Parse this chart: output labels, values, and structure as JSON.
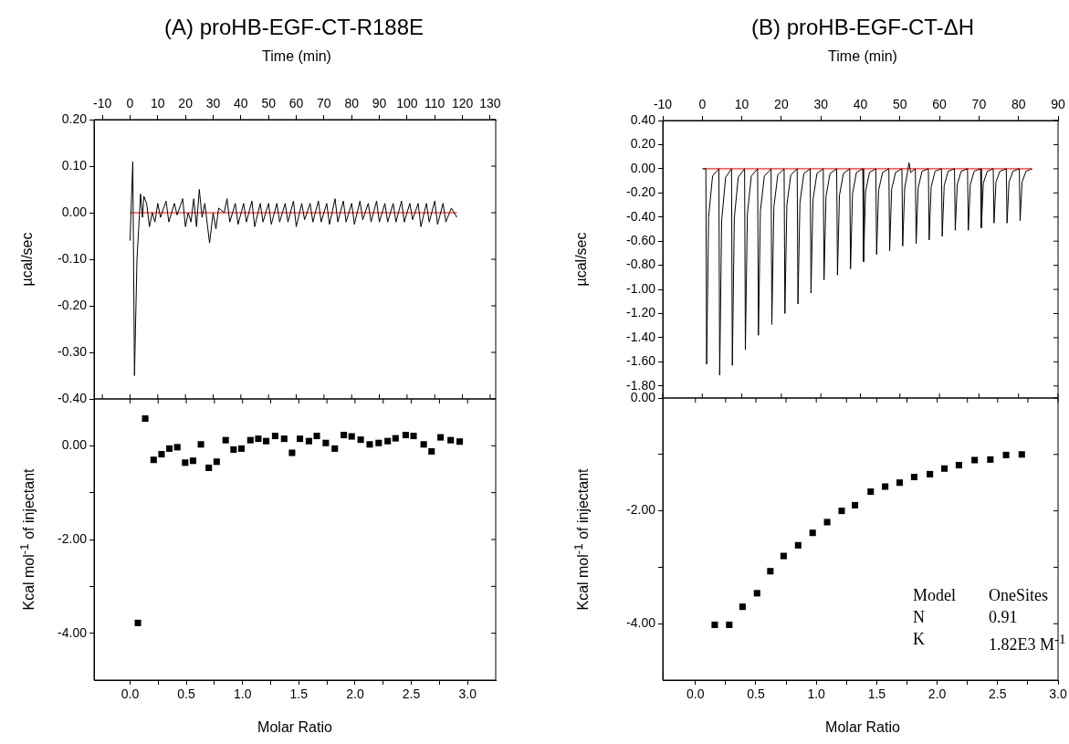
{
  "chart_data": [
    {
      "type": "line",
      "title": "(A) proHB-EGF-CT-R188E",
      "xlabel": "Time (min)",
      "ylabel": "µcal/sec",
      "xlim": [
        -13,
        132
      ],
      "xticks": [
        -10,
        0,
        10,
        20,
        30,
        40,
        50,
        60,
        70,
        80,
        90,
        100,
        110,
        120,
        130
      ],
      "ylim": [
        -0.4,
        0.2
      ],
      "yticks": [
        {
          "value": 0.2,
          "label": "0.20"
        },
        {
          "value": 0.1,
          "label": "0.10"
        },
        {
          "value": 0,
          "label": "0.00"
        },
        {
          "value": -0.1,
          "label": "-0.10"
        },
        {
          "value": -0.2,
          "label": "-0.20"
        },
        {
          "value": -0.3,
          "label": "-0.30"
        },
        {
          "value": -0.4,
          "label": "-0.40"
        }
      ],
      "marker": "none",
      "series": [
        {
          "color": "#000000",
          "x": [
            0,
            1,
            1.6,
            2.5,
            3.8,
            4.5,
            5,
            6,
            7,
            8,
            9,
            10,
            11,
            13,
            14,
            16,
            17,
            19,
            20,
            21,
            22,
            23,
            24,
            25,
            26,
            27,
            28.7,
            30,
            31,
            32,
            34,
            35,
            36,
            38,
            39,
            41,
            42,
            44,
            45,
            47,
            48,
            50,
            51,
            53,
            54,
            56,
            57,
            59,
            60,
            62,
            63,
            65,
            66,
            68,
            69,
            71,
            72,
            74,
            75,
            77,
            78,
            80,
            81,
            83,
            84,
            86,
            87,
            89,
            90,
            92,
            93,
            95,
            96,
            98,
            99,
            101,
            102,
            104,
            105,
            107,
            108,
            110,
            111,
            113,
            114,
            116,
            118
          ],
          "values": [
            -0.06,
            0.11,
            -0.35,
            -0.1,
            0.04,
            -0.01,
            0.035,
            0.02,
            -0.03,
            0,
            -0.02,
            0.02,
            -0.01,
            0.025,
            -0.02,
            0.02,
            -0.005,
            0.03,
            -0.03,
            0,
            -0.02,
            0.03,
            -0.03,
            0.05,
            -0.01,
            0.02,
            -0.065,
            0,
            -0.035,
            0.01,
            0,
            0.03,
            -0.02,
            0.02,
            -0.025,
            0.02,
            -0.02,
            0.025,
            -0.03,
            0.02,
            -0.02,
            0.02,
            -0.025,
            0.02,
            -0.02,
            0.02,
            -0.02,
            0.025,
            -0.03,
            0.02,
            -0.015,
            0.02,
            -0.02,
            0.025,
            -0.02,
            0.02,
            -0.025,
            0.03,
            -0.02,
            0.025,
            -0.02,
            0.02,
            -0.025,
            0.025,
            -0.015,
            0.02,
            -0.02,
            0.025,
            -0.02,
            0.02,
            -0.02,
            0.02,
            -0.02,
            0.025,
            -0.02,
            0.02,
            -0.015,
            0.02,
            -0.03,
            0.02,
            -0.02,
            0.025,
            -0.025,
            0.02,
            -0.02,
            0.01,
            -0.01
          ]
        },
        {
          "color": "#ff0000",
          "x": [
            0,
            118
          ],
          "values": [
            0,
            0
          ]
        }
      ]
    },
    {
      "type": "scatter",
      "xlabel": "Molar Ratio",
      "ylabel": "Kcal mol$^{-1}$ of injectant",
      "marker": "square",
      "color": "#000000",
      "xlim": [
        -0.32,
        3.25
      ],
      "xticks": [
        {
          "value": 0,
          "label": "0.0"
        },
        {
          "value": 0.25,
          "label": null
        },
        {
          "value": 0.5,
          "label": "0.5"
        },
        {
          "value": 0.75,
          "label": null
        },
        {
          "value": 1,
          "label": "1.0"
        },
        {
          "value": 1.25,
          "label": null
        },
        {
          "value": 1.5,
          "label": "1.5"
        },
        {
          "value": 1.75,
          "label": null
        },
        {
          "value": 2,
          "label": "2.0"
        },
        {
          "value": 2.25,
          "label": null
        },
        {
          "value": 2.5,
          "label": "2.5"
        },
        {
          "value": 2.75,
          "label": null
        },
        {
          "value": 3,
          "label": "3.0"
        }
      ],
      "ylim": [
        -5,
        1
      ],
      "yticks": [
        {
          "value": 0,
          "label": "0.00"
        },
        {
          "value": -1,
          "label": null
        },
        {
          "value": -2,
          "label": "-2.00"
        },
        {
          "value": -3,
          "label": null
        },
        {
          "value": -4,
          "label": "-4.00"
        }
      ],
      "x": [
        0.07,
        0.135,
        0.21,
        0.28,
        0.35,
        0.42,
        0.49,
        0.56,
        0.63,
        0.7,
        0.77,
        0.85,
        0.92,
        0.99,
        1.07,
        1.14,
        1.21,
        1.29,
        1.37,
        1.44,
        1.51,
        1.59,
        1.66,
        1.74,
        1.82,
        1.9,
        1.97,
        2.05,
        2.13,
        2.21,
        2.29,
        2.36,
        2.45,
        2.52,
        2.61,
        2.68,
        2.76,
        2.85,
        2.93
      ],
      "values": [
        -3.78,
        0.58,
        -0.3,
        -0.18,
        -0.06,
        -0.03,
        -0.36,
        -0.32,
        0.03,
        -0.47,
        -0.34,
        0.12,
        -0.08,
        -0.06,
        0.12,
        0.15,
        0.1,
        0.21,
        0.15,
        -0.15,
        0.15,
        0.1,
        0.21,
        0.06,
        -0.06,
        0.23,
        0.2,
        0.13,
        0.03,
        0.06,
        0.1,
        0.16,
        0.23,
        0.21,
        0.03,
        -0.12,
        0.18,
        0.12,
        0.09
      ]
    },
    {
      "type": "line",
      "title": "(B) proHB-EGF-CT-ΔH",
      "xlabel": "Time (min)",
      "ylabel": "µcal/sec",
      "xlim": [
        -10,
        90
      ],
      "xticks": [
        -10,
        0,
        10,
        20,
        30,
        40,
        50,
        60,
        70,
        80,
        90
      ],
      "ylim": [
        -1.9,
        0.4
      ],
      "yticks": [
        {
          "value": 0.4,
          "label": "0.40"
        },
        {
          "value": 0.2,
          "label": "0.20"
        },
        {
          "value": 0,
          "label": "0.00"
        },
        {
          "value": -0.2,
          "label": "-0.20"
        },
        {
          "value": -0.4,
          "label": "-0.40"
        },
        {
          "value": -0.6,
          "label": "-0.60"
        },
        {
          "value": -0.8,
          "label": "-0.80"
        },
        {
          "value": -1,
          "label": "-1.00"
        },
        {
          "value": -1.2,
          "label": "-1.20"
        },
        {
          "value": -1.4,
          "label": "-1.40"
        },
        {
          "value": -1.6,
          "label": "-1.60"
        },
        {
          "value": -1.8,
          "label": "-1.80"
        }
      ],
      "marker": "none",
      "series": [
        {
          "color": "#000000",
          "x": [
            0,
            0.9,
            1.1,
            1.6,
            2.6,
            4.2,
            4.4,
            4.9,
            5.9,
            7.4,
            7.6,
            8.1,
            9.1,
            10.7,
            10.9,
            11.4,
            12.4,
            14,
            14.2,
            14.7,
            15.7,
            17.4,
            17.6,
            18.1,
            19.1,
            20.7,
            20.9,
            21.4,
            22.4,
            24,
            24.2,
            24.7,
            25.7,
            27.3,
            27.5,
            28,
            29,
            30.6,
            30.8,
            31.3,
            32.3,
            34,
            34.2,
            34.7,
            35.7,
            37.3,
            37.5,
            38,
            39,
            40.6,
            40.8,
            41.3,
            42.3,
            43.9,
            44.1,
            44.6,
            45.6,
            47.2,
            47.4,
            47.9,
            48.9,
            50.5,
            50.7,
            51.2,
            51.9,
            52.3,
            52.7,
            53.9,
            54.1,
            54.6,
            55.6,
            57.2,
            57.4,
            57.9,
            58.9,
            60.5,
            60.7,
            61.2,
            62.2,
            63.8,
            64,
            64.5,
            65.5,
            67.1,
            67.3,
            67.8,
            68.8,
            70.4,
            70.6,
            71.1,
            72.1,
            73.6,
            73.8,
            74.3,
            75.3,
            76.9,
            77.1,
            77.6,
            78.6,
            80.2,
            80.4,
            80.9,
            81.9,
            83.5
          ],
          "values": [
            0,
            0,
            -1.62,
            -0.4,
            -0.06,
            0,
            -1.71,
            -0.43,
            -0.07,
            0,
            -1.63,
            -0.41,
            -0.07,
            0,
            -1.5,
            -0.38,
            -0.06,
            0,
            -1.38,
            -0.35,
            -0.06,
            0,
            -1.29,
            -0.32,
            -0.05,
            0,
            -1.2,
            -0.3,
            -0.05,
            0,
            -1.12,
            -0.28,
            -0.04,
            0,
            -1.03,
            -0.26,
            -0.04,
            0,
            -0.92,
            -0.23,
            -0.04,
            0,
            -0.88,
            -0.22,
            -0.04,
            0,
            -0.83,
            -0.21,
            -0.03,
            0,
            -0.77,
            -0.19,
            -0.03,
            0,
            -0.71,
            -0.18,
            -0.03,
            0,
            -0.68,
            -0.17,
            -0.03,
            0,
            -0.64,
            -0.16,
            -0.03,
            0.05,
            -0.03,
            0,
            -0.62,
            -0.16,
            -0.02,
            0,
            -0.59,
            -0.15,
            -0.02,
            0,
            -0.56,
            -0.14,
            -0.02,
            0,
            -0.51,
            -0.13,
            -0.02,
            0,
            -0.51,
            -0.13,
            -0.02,
            0,
            -0.49,
            -0.12,
            -0.02,
            0,
            -0.45,
            -0.11,
            -0.02,
            0,
            -0.45,
            -0.11,
            -0.02,
            0,
            -0.43,
            -0.11,
            -0.02,
            0
          ]
        },
        {
          "color": "#ff0000",
          "x": [
            0.3,
            83.3
          ],
          "values": [
            0,
            0
          ]
        }
      ]
    },
    {
      "type": "scatter",
      "xlabel": "Molar Ratio",
      "ylabel": "Kcal mol$^{-1}$ of injectant",
      "marker": "square",
      "color": "#000000",
      "xlim": [
        -0.27,
        3.0
      ],
      "xticks": [
        {
          "value": 0,
          "label": "0.0"
        },
        {
          "value": 0.25,
          "label": null
        },
        {
          "value": 0.5,
          "label": "0.5"
        },
        {
          "value": 0.75,
          "label": null
        },
        {
          "value": 1,
          "label": "1.0"
        },
        {
          "value": 1.25,
          "label": null
        },
        {
          "value": 1.5,
          "label": "1.5"
        },
        {
          "value": 1.75,
          "label": null
        },
        {
          "value": 2,
          "label": "2.0"
        },
        {
          "value": 2.25,
          "label": null
        },
        {
          "value": 2.5,
          "label": "2.5"
        },
        {
          "value": 2.75,
          "label": null
        },
        {
          "value": 3,
          "label": "3.0"
        }
      ],
      "ylim": [
        -5,
        0
      ],
      "yticks": [
        {
          "value": 0,
          "label": "0.00"
        },
        {
          "value": -1,
          "label": null
        },
        {
          "value": -2,
          "label": "-2.00"
        },
        {
          "value": -3,
          "label": null
        },
        {
          "value": -4,
          "label": "-4.00"
        }
      ],
      "x": [
        0.16,
        0.28,
        0.39,
        0.51,
        0.62,
        0.73,
        0.85,
        0.97,
        1.09,
        1.21,
        1.32,
        1.45,
        1.57,
        1.69,
        1.81,
        1.94,
        2.06,
        2.18,
        2.31,
        2.44,
        2.57,
        2.7
      ],
      "values": [
        -4.02,
        -4.02,
        -3.7,
        -3.46,
        -3.07,
        -2.8,
        -2.61,
        -2.39,
        -2.2,
        -2.0,
        -1.9,
        -1.66,
        -1.57,
        -1.5,
        -1.4,
        -1.35,
        -1.25,
        -1.19,
        -1.1,
        -1.09,
        -1.01,
        -1.0
      ],
      "annotations": [
        "Model",
        "OneSites",
        "N",
        "0.91",
        "K",
        "1.82E3 M$^{-1}$"
      ]
    }
  ]
}
